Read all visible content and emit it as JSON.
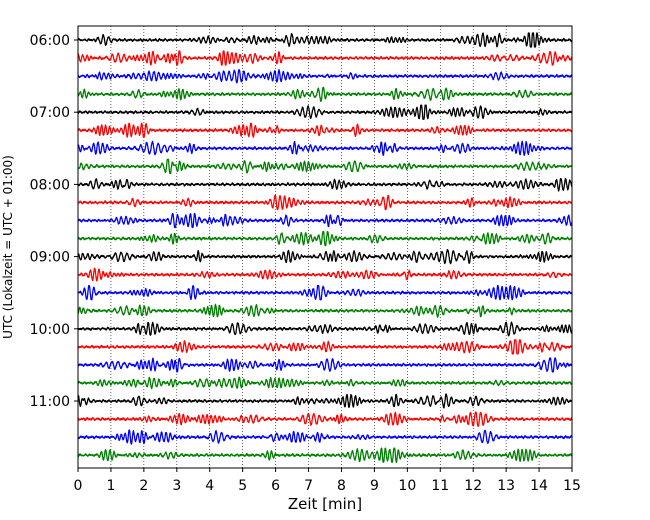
{
  "chart_data": {
    "type": "line",
    "title": "",
    "xlabel": "Zeit  [min]",
    "ylabel": "UTC (Lokalzeit = UTC + 01:00)",
    "xlim": [
      0,
      15
    ],
    "x_ticks": [
      0,
      1,
      2,
      3,
      4,
      5,
      6,
      7,
      8,
      9,
      10,
      11,
      12,
      13,
      14,
      15
    ],
    "y_tick_labels": [
      "06:00",
      "07:00",
      "08:00",
      "09:00",
      "10:00",
      "11:00"
    ],
    "y_tick_rows": [
      0,
      4,
      8,
      12,
      16,
      20
    ],
    "trace_colors": [
      "#000000",
      "#ff0000",
      "#0000ff",
      "#008000"
    ],
    "trace_count": 24,
    "trace_interval_minutes": 15,
    "start_time": "06:00",
    "grid": "vertical dotted"
  }
}
